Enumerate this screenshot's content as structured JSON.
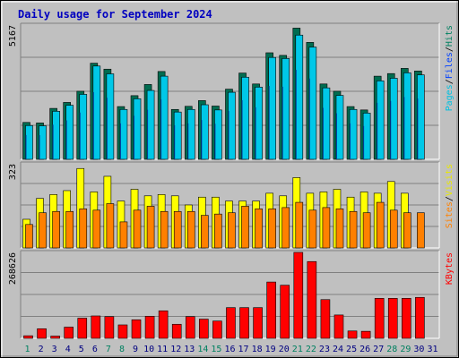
{
  "chart_data": [
    {
      "type": "bar",
      "title": "Daily usage for September 2024",
      "panel": "hits-files-pages",
      "ymax_label": "5167",
      "ymax": 5167,
      "legend": [
        {
          "text": "Pages",
          "color": "#00c0e0"
        },
        {
          "text": "/",
          "color": "#000000"
        },
        {
          "text": "Files",
          "color": "#0040ff"
        },
        {
          "text": "/",
          "color": "#000000"
        },
        {
          "text": "Hits",
          "color": "#008060"
        }
      ],
      "categories": [
        "1",
        "2",
        "3",
        "4",
        "5",
        "6",
        "7",
        "8",
        "9",
        "10",
        "11",
        "12",
        "13",
        "14",
        "15",
        "16",
        "17",
        "18",
        "19",
        "20",
        "21",
        "22",
        "23",
        "24",
        "25",
        "26",
        "27",
        "28",
        "29",
        "30",
        "31"
      ],
      "day_colors": [
        "#008060",
        "#000080",
        "#000080",
        "#000080",
        "#000080",
        "#000080",
        "#008060",
        "#008060",
        "#000080",
        "#000080",
        "#000080",
        "#000080",
        "#000080",
        "#008060",
        "#008060",
        "#000080",
        "#000080",
        "#000080",
        "#000080",
        "#000080",
        "#008060",
        "#008060",
        "#000080",
        "#000080",
        "#000080",
        "#000080",
        "#000080",
        "#008060",
        "#008060",
        "#000080",
        "#000080"
      ],
      "series": [
        {
          "name": "Hits",
          "color": "#006c50",
          "values": [
            1420,
            1400,
            1960,
            2190,
            2620,
            3700,
            3470,
            2030,
            2450,
            2880,
            3380,
            1920,
            2040,
            2260,
            2050,
            2700,
            3320,
            2900,
            4100,
            4000,
            5050,
            4500,
            2900,
            2620,
            2030,
            1900,
            3200,
            3300,
            3500,
            3400,
            0
          ]
        },
        {
          "name": "Pages",
          "color": "#00c8e8",
          "values": [
            1300,
            1290,
            1850,
            2080,
            2500,
            3590,
            3290,
            1920,
            2330,
            2650,
            3200,
            1820,
            1920,
            2100,
            1900,
            2580,
            3160,
            2780,
            3920,
            3880,
            4780,
            4320,
            2750,
            2460,
            1920,
            1780,
            3020,
            3120,
            3330,
            3250,
            0
          ]
        }
      ]
    },
    {
      "type": "bar",
      "panel": "visits-sites",
      "ymax_label": "323",
      "ymax": 323,
      "legend": [
        {
          "text": "Sites",
          "color": "#ff8000"
        },
        {
          "text": "/",
          "color": "#000000"
        },
        {
          "text": "Visits",
          "color": "#e8e800"
        }
      ],
      "series": [
        {
          "name": "Visits",
          "color": "#ffff00",
          "values": [
            110,
            190,
            205,
            220,
            305,
            215,
            275,
            180,
            225,
            200,
            205,
            200,
            165,
            195,
            195,
            180,
            180,
            180,
            210,
            200,
            270,
            210,
            215,
            225,
            195,
            215,
            210,
            255,
            210,
            0,
            0
          ]
        },
        {
          "name": "Sites",
          "color": "#ff8000",
          "values": [
            90,
            135,
            140,
            140,
            150,
            145,
            170,
            100,
            145,
            160,
            140,
            140,
            140,
            125,
            130,
            135,
            160,
            150,
            150,
            155,
            175,
            145,
            155,
            150,
            140,
            135,
            175,
            145,
            135,
            135,
            0
          ]
        }
      ]
    },
    {
      "type": "bar",
      "panel": "kbytes",
      "ymax_label": "268626",
      "ymax": 268626,
      "legend": [
        {
          "text": "KBytes",
          "color": "#ff0000"
        }
      ],
      "series": [
        {
          "name": "KBytes",
          "color": "#ff0000",
          "values": [
            8000,
            30000,
            7000,
            35000,
            63000,
            70000,
            68000,
            42000,
            58000,
            69000,
            86000,
            44000,
            68000,
            60000,
            54000,
            96000,
            96000,
            96000,
            176000,
            166000,
            268626,
            240000,
            121000,
            73000,
            23000,
            22000,
            125000,
            125000,
            125000,
            128000,
            0
          ]
        }
      ]
    }
  ]
}
